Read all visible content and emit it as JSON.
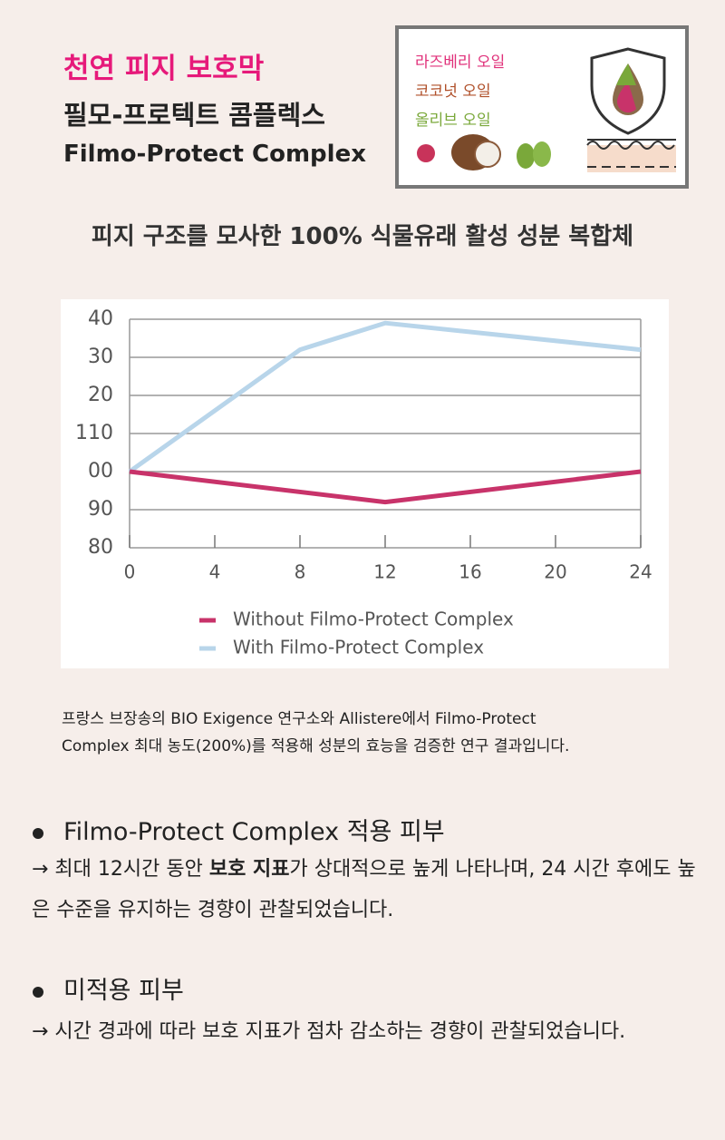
{
  "header": {
    "title": "천연 피지 보호막",
    "name_ko": "필모-프로텍트 콤플렉스",
    "name_en": "Filmo-Protect Complex"
  },
  "ingredients": [
    "라즈베리 오일",
    "코코넛 오일",
    "올리브 오일"
  ],
  "subtitle": "피지 구조를 모사한 100% 식물유래 활성 성분 복합체",
  "chart_data": {
    "type": "line",
    "xlim": [
      0,
      24
    ],
    "xticks": [
      0,
      4,
      8,
      12,
      16,
      20,
      24
    ],
    "ylim": [
      80,
      140
    ],
    "yticks": [
      {
        "value": 140,
        "label": "40"
      },
      {
        "value": 130,
        "label": "30"
      },
      {
        "value": 120,
        "label": "20"
      },
      110,
      {
        "value": 100,
        "label": "00"
      },
      90,
      80
    ],
    "grid": true,
    "series": [
      {
        "name": "Without Filmo-Protect Complex",
        "color": "#c8336a",
        "x": [
          0,
          12,
          24
        ],
        "values": [
          100,
          92,
          100
        ]
      },
      {
        "name": "With Filmo-Protect Complex",
        "color": "#b8d5ea",
        "x": [
          0,
          8,
          12,
          24
        ],
        "values": [
          100,
          132,
          139,
          132
        ]
      }
    ]
  },
  "caption": [
    "프랑스 브장송의 BIO Exigence 연구소와 Allistere에서 Filmo-Protect",
    "Complex 최대 농도(200%)를 적용해 성분의 효능을 검증한 연구 결과입니다."
  ],
  "points": [
    {
      "heading": "Filmo-Protect Complex 적용 피부",
      "text_before": "→ 최대 12시간 동안 ",
      "text_bold": "보호 지표",
      "text_after": "가 상대적으로 높게 나타나며, 24 시간 후에도 높은 수준을 유지하는 경향이 관찰되었습니다."
    },
    {
      "heading": "미적용 피부",
      "text": "→ 시간 경과에 따라 보호 지표가 점차 감소하는 경향이 관찰되었습니다."
    }
  ]
}
